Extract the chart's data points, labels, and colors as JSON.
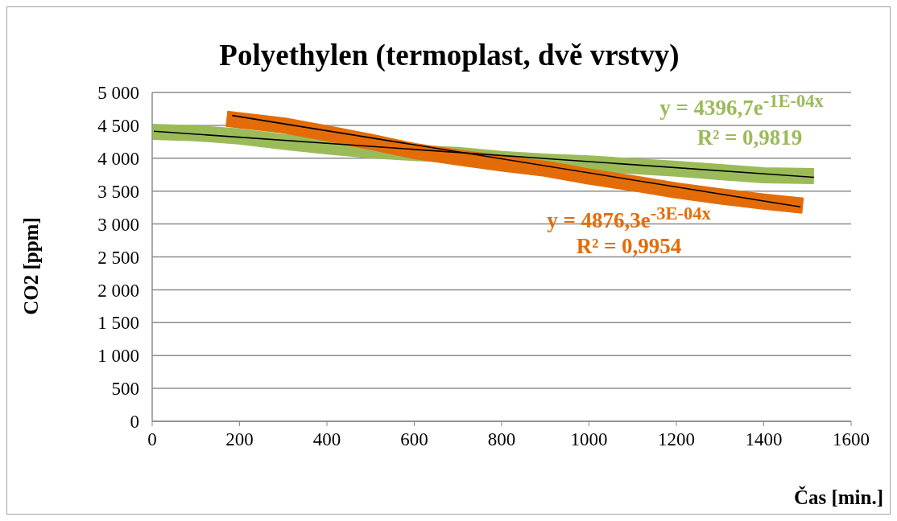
{
  "chart_data": {
    "type": "line",
    "title": "Polyethylen (termoplast, dvě vrstvy)",
    "xlabel": "Čas [min.]",
    "ylabel": "CO2 [ppm]",
    "xlim": [
      0,
      1600
    ],
    "xticks": [
      0,
      200,
      400,
      600,
      800,
      1000,
      1200,
      1400,
      1600
    ],
    "ylim": [
      0,
      5000
    ],
    "yticks": [
      {
        "value": 0,
        "label": "0"
      },
      {
        "value": 500,
        "label": "500"
      },
      {
        "value": 1000,
        "label": "1 000"
      },
      {
        "value": 1500,
        "label": "1 500"
      },
      {
        "value": 2000,
        "label": "2 000"
      },
      {
        "value": 2500,
        "label": "2 500"
      },
      {
        "value": 3000,
        "label": "3 000"
      },
      {
        "value": 3500,
        "label": "3 500"
      },
      {
        "value": 4000,
        "label": "4 000"
      },
      {
        "value": 4500,
        "label": "4 500"
      },
      {
        "value": 5000,
        "label": "5 000"
      }
    ],
    "grid": "y",
    "legend": false,
    "marker": "none",
    "series": [
      {
        "color": "#9bbb59",
        "x": [
          0,
          100,
          200,
          300,
          400,
          500,
          600,
          700,
          800,
          900,
          1000,
          1100,
          1200,
          1300,
          1400,
          1515
        ],
        "values": [
          4400,
          4380,
          4330,
          4250,
          4180,
          4120,
          4080,
          4050,
          3990,
          3950,
          3920,
          3880,
          3840,
          3790,
          3740,
          3730
        ]
      },
      {
        "color": "#e36c09",
        "x": [
          170,
          300,
          400,
          500,
          600,
          700,
          800,
          900,
          1000,
          1100,
          1200,
          1300,
          1400,
          1490
        ],
        "values": [
          4600,
          4500,
          4380,
          4250,
          4110,
          4010,
          3920,
          3840,
          3720,
          3620,
          3510,
          3420,
          3340,
          3280
        ]
      },
      {
        "type": "line",
        "color": "#000000",
        "x": [
          4,
          1515
        ],
        "values": [
          4410,
          3710
        ]
      },
      {
        "type": "line",
        "color": "#000000",
        "x": [
          183,
          1484
        ],
        "values": [
          4650,
          3260
        ]
      }
    ],
    "annotations": [
      "y = 4396,7e$^{-1E-04x}$",
      "R² = 0,9819",
      "y = 4876,3e$^{-3E-04x}$",
      "R² = 0,9954"
    ]
  }
}
